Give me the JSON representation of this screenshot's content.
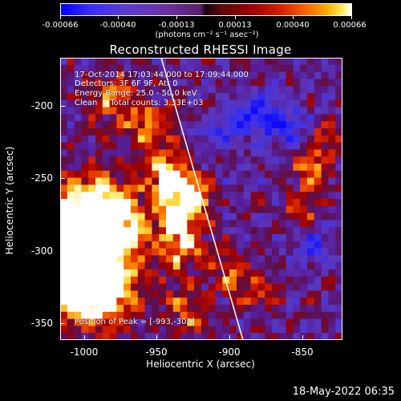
{
  "colorbar": {
    "ticks": [
      "-0.00066",
      "-0.00040",
      "-0.00013",
      "0.00013",
      "0.00040",
      "0.00066"
    ],
    "units": "(photons cm⁻² s⁻¹ asec⁻²)"
  },
  "title": "Reconstructed RHESSI Image",
  "annotations": {
    "time_range": "17-Oct-2014 17:03:44.000 to 17:09:44.000",
    "detectors": "Detectors: 3F 6F 9F, Att 0",
    "energy_range": "Energy Range: 25.0 - 50.0 keV",
    "method": "Clean     Total counts: 3.33E+03",
    "peak": "Position of Peak = [-993,-303]"
  },
  "x_axis": {
    "label": "Heliocentric X (arcsec)",
    "ticks": [
      "-1000",
      "-950",
      "-900",
      "-850"
    ]
  },
  "y_axis": {
    "label": "Heliocentric Y (arcsec)",
    "ticks": [
      "-200",
      "-250",
      "-300",
      "-350"
    ]
  },
  "date_stamp": "18-May-2022 06:35",
  "colors": {
    "background": "#000000",
    "limb_line": "#ffffff",
    "positive_peak": "#ffffff",
    "negative": "#0000ff"
  }
}
